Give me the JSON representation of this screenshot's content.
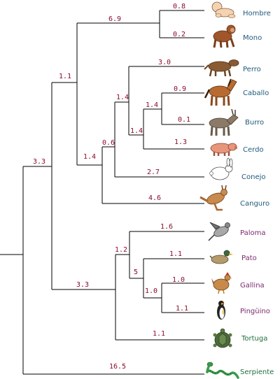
{
  "colors": {
    "branch": "#000000",
    "branch_length": "#8b0a2a",
    "mammal_label": "#1f5a7a",
    "bird_label": "#7a2a6e",
    "reptile_label": "#1f6e3e"
  },
  "taxa": [
    {
      "key": "hombre",
      "label": "Hombre",
      "group": "mammal",
      "icon": "human-baby-icon"
    },
    {
      "key": "mono",
      "label": "Mono",
      "group": "mammal",
      "icon": "monkey-icon"
    },
    {
      "key": "perro",
      "label": "Perro",
      "group": "mammal",
      "icon": "dog-icon"
    },
    {
      "key": "caballo",
      "label": "Caballo",
      "group": "mammal",
      "icon": "horse-icon"
    },
    {
      "key": "burro",
      "label": "Burro",
      "group": "mammal",
      "icon": "donkey-icon"
    },
    {
      "key": "cerdo",
      "label": "Cerdo",
      "group": "mammal",
      "icon": "pig-icon"
    },
    {
      "key": "conejo",
      "label": "Conejo",
      "group": "mammal",
      "icon": "rabbit-icon"
    },
    {
      "key": "canguro",
      "label": "Canguro",
      "group": "mammal",
      "icon": "kangaroo-icon"
    },
    {
      "key": "paloma",
      "label": "Paloma",
      "group": "bird",
      "icon": "pigeon-icon"
    },
    {
      "key": "pato",
      "label": "Pato",
      "group": "bird",
      "icon": "duck-icon"
    },
    {
      "key": "gallina",
      "label": "Gallina",
      "group": "bird",
      "icon": "hen-icon"
    },
    {
      "key": "pinguino",
      "label": "Pingüino",
      "group": "bird",
      "icon": "penguin-icon"
    },
    {
      "key": "tortuga",
      "label": "Tortuga",
      "group": "reptile",
      "icon": "turtle-icon"
    },
    {
      "key": "serpiente",
      "label": "Serpiente",
      "group": "reptile",
      "icon": "snake-icon"
    }
  ],
  "branch_lengths": {
    "hombre": "0.8",
    "mono": "0.2",
    "primates": "6.9",
    "perro": "3.0",
    "caballo": "0.9",
    "burro": "0.1",
    "caballo_burro": "1.4",
    "cerdo": "1.3",
    "ungulados": "1.4",
    "perro_ungulados": "1.4",
    "conejo": "2.7",
    "placentarios_no_primates": "0.6",
    "placentarios": "1.4",
    "canguro": "4.6",
    "euterios_marsupiales": "1.1",
    "mamiferos": "3.3",
    "paloma": "1.6",
    "pato": "1.1",
    "gallina": "1.0",
    "pinguino": "1.1",
    "gallina_pinguino": "1.0",
    "pato_gallinas": "5",
    "aves": "1.2",
    "tortuga": "1.1",
    "saurópsidos": "3.3",
    "serpiente": "16.5"
  }
}
